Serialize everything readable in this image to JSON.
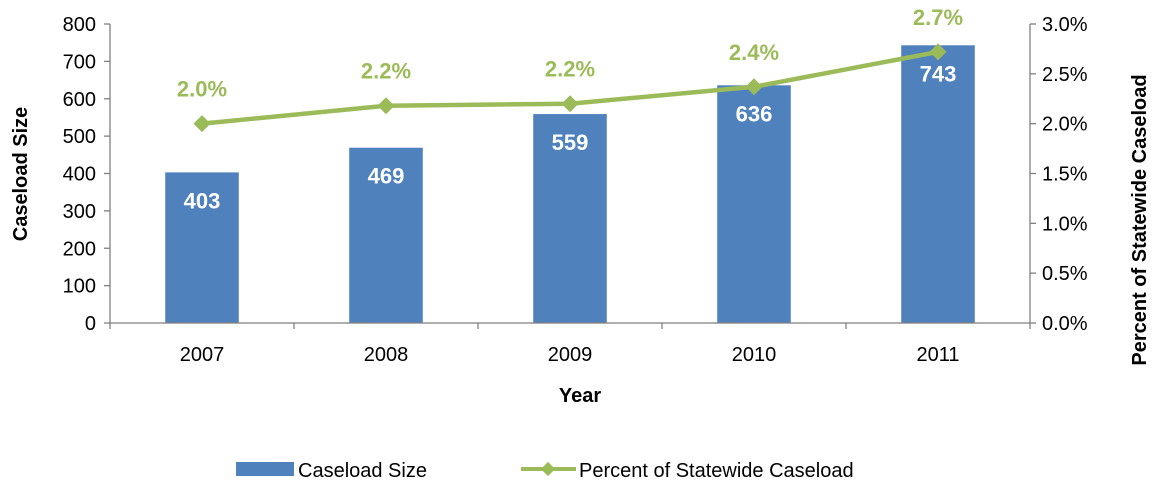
{
  "chart_data": {
    "type": "bar",
    "categories": [
      "2007",
      "2008",
      "2009",
      "2010",
      "2011"
    ],
    "series": [
      {
        "name": "Caseload Size",
        "chart_type": "bar",
        "axis": "left",
        "values": [
          403,
          469,
          559,
          636,
          743
        ],
        "data_labels": [
          "403",
          "469",
          "559",
          "636",
          "743"
        ],
        "color": "#4f81bd"
      },
      {
        "name": "Percent of Statewide Caseload",
        "chart_type": "line",
        "axis": "right",
        "values": [
          2.0,
          2.2,
          2.2,
          2.4,
          2.7
        ],
        "plotted_values": [
          2.0,
          2.18,
          2.2,
          2.37,
          2.72
        ],
        "data_labels": [
          "2.0%",
          "2.2%",
          "2.2%",
          "2.4%",
          "2.7%"
        ],
        "color": "#9bbb59",
        "marker": "diamond"
      }
    ],
    "xlabel": "Year",
    "ylabel": "Caseload Size",
    "y2label": "Percent of Statewide Caseload",
    "ylim": [
      0,
      800
    ],
    "y2lim": [
      0,
      3.0
    ],
    "yticks": [
      "0",
      "100",
      "200",
      "300",
      "400",
      "500",
      "600",
      "700",
      "800"
    ],
    "y2ticks": [
      "0.0%",
      "0.5%",
      "1.0%",
      "1.5%",
      "2.0%",
      "2.5%",
      "3.0%"
    ],
    "grid": false,
    "legend_position": "bottom"
  }
}
